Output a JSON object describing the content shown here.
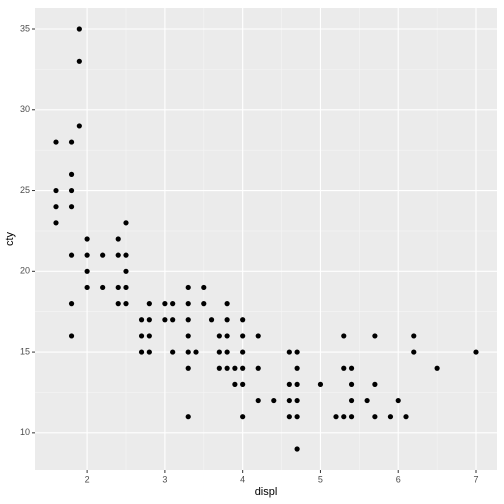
{
  "chart_data": {
    "type": "scatter",
    "x_label": "displ",
    "y_label": "cty",
    "x": [
      1.6,
      1.6,
      1.6,
      1.6,
      1.8,
      1.8,
      1.8,
      1.8,
      1.8,
      1.8,
      1.8,
      1.9,
      1.9,
      1.9,
      2.0,
      2.0,
      2.0,
      2.0,
      2.2,
      2.2,
      2.4,
      2.4,
      2.4,
      2.4,
      2.5,
      2.5,
      2.5,
      2.5,
      2.5,
      2.7,
      2.7,
      2.7,
      2.8,
      2.8,
      2.8,
      2.8,
      3.0,
      3.0,
      3.1,
      3.1,
      3.1,
      3.3,
      3.3,
      3.3,
      3.3,
      3.3,
      3.3,
      3.3,
      3.4,
      3.5,
      3.5,
      3.6,
      3.7,
      3.7,
      3.7,
      3.8,
      3.8,
      3.8,
      3.8,
      3.8,
      3.9,
      3.9,
      4.0,
      4.0,
      4.0,
      4.0,
      4.0,
      4.0,
      4.2,
      4.2,
      4.2,
      4.4,
      4.6,
      4.6,
      4.6,
      4.6,
      4.7,
      4.7,
      4.7,
      4.7,
      4.7,
      4.7,
      5.0,
      5.2,
      5.3,
      5.3,
      5.3,
      5.4,
      5.4,
      5.4,
      5.4,
      5.6,
      5.7,
      5.7,
      5.7,
      5.9,
      6.0,
      6.1,
      6.2,
      6.2,
      6.5,
      7.0
    ],
    "y": [
      28,
      25,
      24,
      23,
      28,
      26,
      25,
      24,
      21,
      18,
      16,
      35,
      33,
      29,
      22,
      21,
      20,
      19,
      21,
      19,
      22,
      21,
      19,
      18,
      23,
      21,
      20,
      19,
      18,
      17,
      16,
      15,
      18,
      17,
      16,
      15,
      18,
      17,
      18,
      17,
      15,
      19,
      18,
      17,
      16,
      15,
      14,
      11,
      15,
      19,
      18,
      17,
      16,
      15,
      14,
      18,
      17,
      16,
      15,
      14,
      13,
      14,
      17,
      16,
      15,
      14,
      13,
      11,
      16,
      14,
      12,
      12,
      15,
      13,
      12,
      11,
      15,
      14,
      13,
      12,
      11,
      9,
      13,
      11,
      16,
      14,
      11,
      14,
      13,
      12,
      11,
      12,
      16,
      13,
      11,
      11,
      12,
      11,
      16,
      15,
      14,
      15
    ],
    "color": "#000000",
    "xlim": [
      1.33,
      7.27
    ],
    "ylim": [
      7.7,
      36.3
    ],
    "xticks": [
      2,
      3,
      4,
      5,
      6,
      7
    ],
    "yticks": [
      10,
      15,
      20,
      25,
      30,
      35
    ],
    "grid": true
  }
}
